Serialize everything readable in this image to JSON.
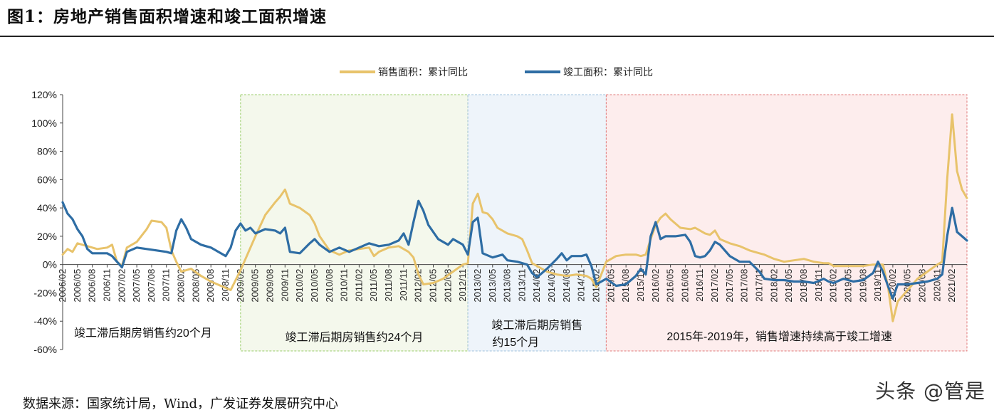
{
  "figure": {
    "title": "图1：房地产销售面积增速和竣工面积增速",
    "source": "数据来源：国家统计局，Wind，广发证券发展研究中心",
    "watermark": "头条 @管是"
  },
  "colors": {
    "sales": "#E8C36B",
    "completion": "#2E6DA4",
    "zone1_fill": "#FFFFFF",
    "zone2_fill": "#F4F8EC",
    "zone2_border": "#9ACD6A",
    "zone3_fill": "#EEF4FA",
    "zone3_border": "#9EC0DD",
    "zone4_fill": "#FDEDED",
    "zone4_border": "#E07A7A"
  },
  "chart_data": {
    "type": "line",
    "title": "",
    "xlabel": "",
    "ylabel": "",
    "ylim": [
      -60,
      120
    ],
    "yticks": [
      "120%",
      "100%",
      "80%",
      "60%",
      "40%",
      "20%",
      "0%",
      "-20%",
      "-40%",
      "-60%"
    ],
    "x_start": "2006/02",
    "x_end": "2021/05",
    "x_tick_labels": [
      "2006/02",
      "2006/05",
      "2006/08",
      "2006/11",
      "2007/02",
      "2007/05",
      "2007/08",
      "2007/11",
      "2008/02",
      "2008/05",
      "2008/08",
      "2008/11",
      "2009/02",
      "2009/05",
      "2009/08",
      "2009/11",
      "2010/02",
      "2010/05",
      "2010/08",
      "2010/11",
      "2011/02",
      "2011/05",
      "2011/08",
      "2011/11",
      "2012/02",
      "2012/05",
      "2012/08",
      "2012/11",
      "2013/02",
      "2013/05",
      "2013/08",
      "2013/11",
      "2014/02",
      "2014/05",
      "2014/08",
      "2014/11",
      "2015/02",
      "2015/05",
      "2015/08",
      "2015/11",
      "2016/02",
      "2016/05",
      "2016/08",
      "2016/11",
      "2017/02",
      "2017/05",
      "2017/08",
      "2017/11",
      "2018/02",
      "2018/05",
      "2018/08",
      "2018/11",
      "2019/02",
      "2019/05",
      "2019/08",
      "2019/11",
      "2020/02",
      "2020/05",
      "2020/08",
      "2020/11",
      "2021/02"
    ],
    "legend": [
      "销售面积：累计同比",
      "竣工面积：累计同比"
    ],
    "legend_position": "top",
    "series": [
      {
        "name": "销售面积：累计同比",
        "color_key": "sales",
        "points": [
          [
            "2006/02",
            7
          ],
          [
            "2006/03",
            11
          ],
          [
            "2006/04",
            9
          ],
          [
            "2006/05",
            15
          ],
          [
            "2006/07",
            13
          ],
          [
            "2006/09",
            11
          ],
          [
            "2006/11",
            12
          ],
          [
            "2006/12",
            14
          ],
          [
            "2007/01",
            2
          ],
          [
            "2007/02",
            -1
          ],
          [
            "2007/03",
            12
          ],
          [
            "2007/05",
            16
          ],
          [
            "2007/07",
            25
          ],
          [
            "2007/08",
            31
          ],
          [
            "2007/10",
            30
          ],
          [
            "2007/11",
            26
          ],
          [
            "2007/12",
            10
          ],
          [
            "2008/01",
            2
          ],
          [
            "2008/02",
            -5
          ],
          [
            "2008/04",
            -3
          ],
          [
            "2008/06",
            -8
          ],
          [
            "2008/08",
            -12
          ],
          [
            "2008/10",
            -15
          ],
          [
            "2008/12",
            -18
          ],
          [
            "2009/02",
            -4
          ],
          [
            "2009/03",
            4
          ],
          [
            "2009/05",
            20
          ],
          [
            "2009/07",
            35
          ],
          [
            "2009/09",
            44
          ],
          [
            "2009/10",
            48
          ],
          [
            "2009/11",
            53
          ],
          [
            "2009/12",
            43
          ],
          [
            "2010/02",
            40
          ],
          [
            "2010/04",
            35
          ],
          [
            "2010/05",
            29
          ],
          [
            "2010/06",
            20
          ],
          [
            "2010/08",
            10
          ],
          [
            "2010/10",
            7
          ],
          [
            "2010/12",
            10
          ],
          [
            "2011/02",
            11
          ],
          [
            "2011/04",
            12
          ],
          [
            "2011/05",
            6
          ],
          [
            "2011/06",
            9
          ],
          [
            "2011/08",
            12
          ],
          [
            "2011/10",
            13
          ],
          [
            "2011/12",
            9
          ],
          [
            "2012/01",
            5
          ],
          [
            "2012/02",
            -7
          ],
          [
            "2012/03",
            -14
          ],
          [
            "2012/05",
            -13
          ],
          [
            "2012/07",
            -10
          ],
          [
            "2012/09",
            -5
          ],
          [
            "2012/11",
            0
          ],
          [
            "2012/12",
            1
          ],
          [
            "2013/01",
            43
          ],
          [
            "2013/02",
            50
          ],
          [
            "2013/03",
            37
          ],
          [
            "2013/04",
            36
          ],
          [
            "2013/05",
            32
          ],
          [
            "2013/06",
            26
          ],
          [
            "2013/08",
            22
          ],
          [
            "2013/10",
            20
          ],
          [
            "2013/11",
            18
          ],
          [
            "2013/12",
            10
          ],
          [
            "2014/01",
            1
          ],
          [
            "2014/02",
            -1
          ],
          [
            "2014/04",
            -5
          ],
          [
            "2014/06",
            -7
          ],
          [
            "2014/08",
            -8
          ],
          [
            "2014/10",
            -7
          ],
          [
            "2014/12",
            -8
          ],
          [
            "2015/01",
            -10
          ],
          [
            "2015/02",
            -16
          ],
          [
            "2015/04",
            2
          ],
          [
            "2015/06",
            6
          ],
          [
            "2015/08",
            7
          ],
          [
            "2015/10",
            7
          ],
          [
            "2015/11",
            6
          ],
          [
            "2015/12",
            7
          ],
          [
            "2016/01",
            18
          ],
          [
            "2016/02",
            28
          ],
          [
            "2016/03",
            33
          ],
          [
            "2016/04",
            36
          ],
          [
            "2016/05",
            32
          ],
          [
            "2016/07",
            26
          ],
          [
            "2016/09",
            25
          ],
          [
            "2016/10",
            26
          ],
          [
            "2016/11",
            24
          ],
          [
            "2016/12",
            22
          ],
          [
            "2017/01",
            21
          ],
          [
            "2017/02",
            24
          ],
          [
            "2017/03",
            18
          ],
          [
            "2017/05",
            15
          ],
          [
            "2017/07",
            13
          ],
          [
            "2017/09",
            10
          ],
          [
            "2017/11",
            8
          ],
          [
            "2017/12",
            7
          ],
          [
            "2018/02",
            4
          ],
          [
            "2018/04",
            2
          ],
          [
            "2018/06",
            3
          ],
          [
            "2018/08",
            4
          ],
          [
            "2018/10",
            2
          ],
          [
            "2018/12",
            1
          ],
          [
            "2019/01",
            1
          ],
          [
            "2019/02",
            -1
          ],
          [
            "2019/04",
            -1
          ],
          [
            "2019/06",
            -1
          ],
          [
            "2019/08",
            -1
          ],
          [
            "2019/10",
            0
          ],
          [
            "2019/11",
            0
          ],
          [
            "2019/12",
            0
          ],
          [
            "2020/01",
            -15
          ],
          [
            "2020/02",
            -40
          ],
          [
            "2020/03",
            -26
          ],
          [
            "2020/05",
            -18
          ],
          [
            "2020/07",
            -10
          ],
          [
            "2020/09",
            -5
          ],
          [
            "2020/11",
            0
          ],
          [
            "2020/12",
            2
          ],
          [
            "2021/01",
            60
          ],
          [
            "2021/02",
            106
          ],
          [
            "2021/03",
            66
          ],
          [
            "2021/04",
            53
          ],
          [
            "2021/05",
            47
          ]
        ]
      },
      {
        "name": "竣工面积：累计同比",
        "color_key": "completion",
        "points": [
          [
            "2006/02",
            44
          ],
          [
            "2006/03",
            36
          ],
          [
            "2006/04",
            32
          ],
          [
            "2006/05",
            25
          ],
          [
            "2006/06",
            20
          ],
          [
            "2006/07",
            11
          ],
          [
            "2006/08",
            8
          ],
          [
            "2006/10",
            8
          ],
          [
            "2006/11",
            8
          ],
          [
            "2006/12",
            6
          ],
          [
            "2007/01",
            2
          ],
          [
            "2007/02",
            -2
          ],
          [
            "2007/03",
            9
          ],
          [
            "2007/05",
            12
          ],
          [
            "2007/07",
            11
          ],
          [
            "2007/09",
            10
          ],
          [
            "2007/11",
            9
          ],
          [
            "2007/12",
            8
          ],
          [
            "2008/01",
            24
          ],
          [
            "2008/02",
            32
          ],
          [
            "2008/03",
            26
          ],
          [
            "2008/04",
            18
          ],
          [
            "2008/06",
            14
          ],
          [
            "2008/08",
            12
          ],
          [
            "2008/10",
            8
          ],
          [
            "2008/11",
            6
          ],
          [
            "2008/12",
            12
          ],
          [
            "2009/01",
            24
          ],
          [
            "2009/02",
            29
          ],
          [
            "2009/03",
            24
          ],
          [
            "2009/04",
            26
          ],
          [
            "2009/05",
            22
          ],
          [
            "2009/07",
            25
          ],
          [
            "2009/09",
            24
          ],
          [
            "2009/10",
            22
          ],
          [
            "2009/11",
            26
          ],
          [
            "2009/12",
            9
          ],
          [
            "2010/02",
            8
          ],
          [
            "2010/04",
            15
          ],
          [
            "2010/05",
            18
          ],
          [
            "2010/06",
            14
          ],
          [
            "2010/08",
            9
          ],
          [
            "2010/10",
            12
          ],
          [
            "2010/12",
            9
          ],
          [
            "2011/02",
            12
          ],
          [
            "2011/04",
            15
          ],
          [
            "2011/06",
            13
          ],
          [
            "2011/08",
            14
          ],
          [
            "2011/10",
            17
          ],
          [
            "2011/11",
            22
          ],
          [
            "2011/12",
            14
          ],
          [
            "2012/01",
            30
          ],
          [
            "2012/02",
            45
          ],
          [
            "2012/03",
            38
          ],
          [
            "2012/04",
            28
          ],
          [
            "2012/06",
            18
          ],
          [
            "2012/08",
            14
          ],
          [
            "2012/09",
            18
          ],
          [
            "2012/10",
            16
          ],
          [
            "2012/11",
            14
          ],
          [
            "2012/12",
            7
          ],
          [
            "2013/01",
            30
          ],
          [
            "2013/02",
            33
          ],
          [
            "2013/03",
            8
          ],
          [
            "2013/05",
            5
          ],
          [
            "2013/07",
            7
          ],
          [
            "2013/08",
            3
          ],
          [
            "2013/10",
            2
          ],
          [
            "2013/12",
            0
          ],
          [
            "2014/01",
            -6
          ],
          [
            "2014/02",
            -9
          ],
          [
            "2014/04",
            -3
          ],
          [
            "2014/06",
            4
          ],
          [
            "2014/07",
            8
          ],
          [
            "2014/08",
            3
          ],
          [
            "2014/09",
            6
          ],
          [
            "2014/11",
            6
          ],
          [
            "2014/12",
            7
          ],
          [
            "2015/01",
            -1
          ],
          [
            "2015/02",
            -14
          ],
          [
            "2015/04",
            -10
          ],
          [
            "2015/06",
            -15
          ],
          [
            "2015/08",
            -14
          ],
          [
            "2015/10",
            -8
          ],
          [
            "2015/11",
            -3
          ],
          [
            "2015/12",
            -7
          ],
          [
            "2016/01",
            20
          ],
          [
            "2016/02",
            30
          ],
          [
            "2016/03",
            18
          ],
          [
            "2016/04",
            20
          ],
          [
            "2016/06",
            20
          ],
          [
            "2016/08",
            21
          ],
          [
            "2016/09",
            16
          ],
          [
            "2016/10",
            6
          ],
          [
            "2016/11",
            5
          ],
          [
            "2016/12",
            6
          ],
          [
            "2017/01",
            10
          ],
          [
            "2017/02",
            16
          ],
          [
            "2017/03",
            14
          ],
          [
            "2017/05",
            6
          ],
          [
            "2017/07",
            2
          ],
          [
            "2017/09",
            2
          ],
          [
            "2017/11",
            -5
          ],
          [
            "2017/12",
            -10
          ],
          [
            "2018/02",
            -11
          ],
          [
            "2018/04",
            -11
          ],
          [
            "2018/06",
            -12
          ],
          [
            "2018/08",
            -12
          ],
          [
            "2018/10",
            -13
          ],
          [
            "2018/12",
            -10
          ],
          [
            "2019/01",
            -12
          ],
          [
            "2019/02",
            -13
          ],
          [
            "2019/04",
            -10
          ],
          [
            "2019/06",
            -12
          ],
          [
            "2019/08",
            -11
          ],
          [
            "2019/10",
            -6
          ],
          [
            "2019/11",
            2
          ],
          [
            "2019/12",
            -5
          ],
          [
            "2020/01",
            -15
          ],
          [
            "2020/02",
            -24
          ],
          [
            "2020/03",
            -14
          ],
          [
            "2020/05",
            -14
          ],
          [
            "2020/07",
            -13
          ],
          [
            "2020/09",
            -12
          ],
          [
            "2020/11",
            -10
          ],
          [
            "2020/12",
            -7
          ],
          [
            "2021/01",
            20
          ],
          [
            "2021/02",
            40
          ],
          [
            "2021/03",
            23
          ],
          [
            "2021/04",
            20
          ],
          [
            "2021/05",
            17
          ]
        ]
      }
    ],
    "annotations": [
      {
        "text": "竣工滞后期房销售约20个月",
        "zone": 1
      },
      {
        "text": "竣工滞后期房销售约24个月",
        "zone": 2
      },
      {
        "text": "竣工滞后期房销售",
        "text2": "约15个月",
        "zone": 3
      },
      {
        "text": "2015年-2019年，销售增速持续高于竣工增速",
        "zone": 4
      }
    ]
  }
}
